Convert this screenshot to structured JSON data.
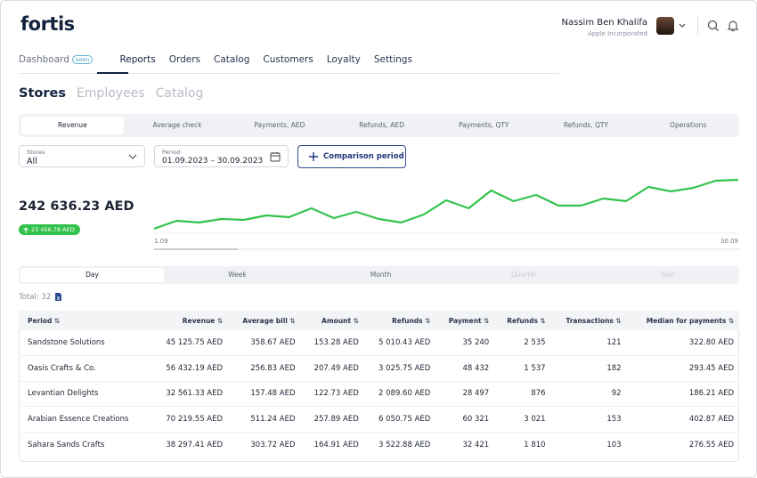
{
  "header": {
    "logo": "fortis",
    "user_name": "Nassim Ben Khalifa",
    "company": "Apple Incorporated"
  },
  "nav": {
    "items": [
      "Dashboard",
      "Reports",
      "Orders",
      "Catalog",
      "Customers",
      "Loyalty",
      "Settings"
    ],
    "badge": "soon"
  },
  "page_tabs": [
    "Stores",
    "Employees",
    "Catalog"
  ],
  "metric_tabs": [
    "Revenue",
    "Average check",
    "Payments, AED",
    "Refunds, AED",
    "Payments, QTY",
    "Refunds, QTY",
    "Operations"
  ],
  "filters": {
    "stores_label": "Stores",
    "stores_value": "All",
    "period_label": "Period",
    "period_value": "01.09.2023 – 30.09.2023",
    "button": "Comparison period"
  },
  "summary": {
    "total": "242 636.23 AED",
    "change": "23 456.78 AED"
  },
  "chart_data": {
    "type": "line",
    "x_start_label": "1.09",
    "x_end_label": "30.09",
    "color": "#33c24d",
    "values": [
      14,
      23,
      21,
      25,
      24,
      29,
      27,
      37,
      26,
      33,
      25,
      21,
      30,
      46,
      37,
      57,
      45,
      52,
      40,
      40,
      48,
      45,
      61,
      56,
      60,
      68,
      69
    ]
  },
  "granularity": [
    "Day",
    "Week",
    "Month",
    "Quarter",
    "Year"
  ],
  "total_count": "Total: 32",
  "table": {
    "headers": [
      "Period",
      "Revenue",
      "Average bill",
      "Amount",
      "Refunds",
      "Payment",
      "Refunds",
      "Transactions",
      "Median for payments"
    ],
    "rows": [
      [
        "Sandstone Solutions",
        "45 125.75 AED",
        "358.67 AED",
        "153.28 AED",
        "5 010.43 AED",
        "35 240",
        "2 535",
        "121",
        "322.80 AED"
      ],
      [
        "Oasis Crafts & Co.",
        "56 432.19 AED",
        "256.83 AED",
        "207.49 AED",
        "3 025.75 AED",
        "48 432",
        "1 537",
        "182",
        "293.45 AED"
      ],
      [
        "Levantian Delights",
        "32 561.33 AED",
        "157.48 AED",
        "122.73 AED",
        "2 089.60 AED",
        "28 497",
        "876",
        "92",
        "186.21 AED"
      ],
      [
        "Arabian Essence Creations",
        "70 219.55 AED",
        "511.24 AED",
        "257.89 AED",
        "6 050.75 AED",
        "60 321",
        "3 021",
        "153",
        "402.87 AED"
      ],
      [
        "Sahara Sands Crafts",
        "38 297.41 AED",
        "303.72 AED",
        "164.91 AED",
        "3 522.88 AED",
        "32 421",
        "1 810",
        "103",
        "276.55 AED"
      ]
    ]
  }
}
